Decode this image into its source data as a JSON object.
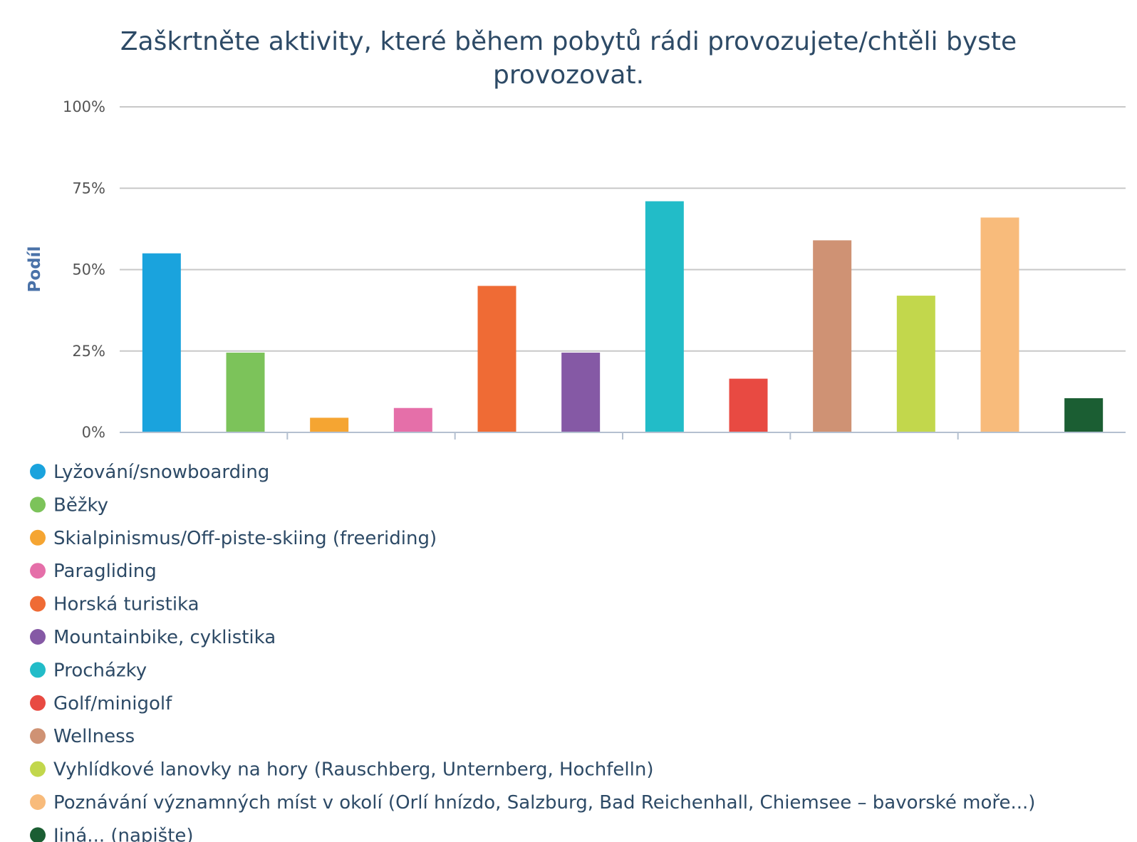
{
  "chart_data": {
    "type": "bar",
    "title_lines": [
      "Zaškrtněte aktivity, které během pobytů rádi provozujete/chtěli byste",
      "provozovat."
    ],
    "ylabel": "Podíl",
    "xlabel": "",
    "ylim": [
      0,
      100
    ],
    "y_ticks": [
      0,
      25,
      50,
      75,
      100
    ],
    "y_tick_labels": [
      "0%",
      "25%",
      "50%",
      "75%",
      "100%"
    ],
    "grid": true,
    "legend_position": "bottom",
    "categories": [
      "Lyžování/snowboarding",
      "Běžky",
      "Skialpinismus/Off-piste-skiing (freeriding)",
      "Paragliding",
      "Horská turistika",
      "Mountainbike, cyklistika",
      "Procházky",
      "Golf/minigolf",
      "Wellness",
      "Vyhlídkové lanovky na hory (Rauschberg, Unternberg, Hochfelln)",
      "Poznávání významných míst v okolí (Orlí hnízdo, Salzburg, Bad Reichenhall, Chiemsee – bavorské moře...)",
      "Jiná... (napište)"
    ],
    "values": [
      55,
      24.5,
      4.5,
      7.5,
      45,
      24.5,
      71,
      16.5,
      59,
      42,
      66,
      10.5
    ],
    "colors": [
      "#1aa3dd",
      "#7cc35a",
      "#f5a532",
      "#e56fa9",
      "#ef6b35",
      "#8559a5",
      "#22bcc8",
      "#e84a42",
      "#cf9274",
      "#c2d74c",
      "#f8bb7b",
      "#1b5e33"
    ]
  }
}
